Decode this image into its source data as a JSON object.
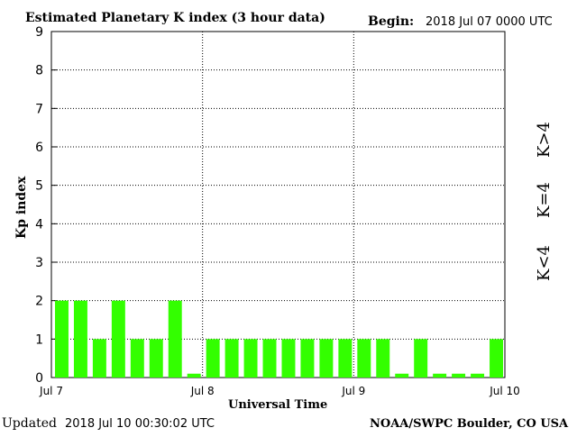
{
  "title": "Estimated Planetary K index (3 hour data)",
  "begin_label": "Begin:",
  "begin_value": "2018 Jul 07 0000 UTC",
  "updated_label": "Updated",
  "updated_value": "2018 Jul 10 00:30:02 UTC",
  "credit": "NOAA/SWPC Boulder, CO USA",
  "legend": {
    "high": {
      "label": "K>4",
      "color": "#ff3300"
    },
    "equal": {
      "label": "K=4",
      "color": "#ffcc00"
    },
    "low": {
      "label": "K<4",
      "color": "#33ff00"
    }
  },
  "chart_data": {
    "type": "bar",
    "title": "Estimated Planetary K index (3 hour data)",
    "xlabel": "Universal Time",
    "ylabel": "Kp index",
    "ylim": [
      0,
      9
    ],
    "yticks": [
      "0",
      "1",
      "2",
      "3",
      "4",
      "5",
      "6",
      "7",
      "8",
      "9"
    ],
    "xticks": [
      "Jul 7",
      "Jul 8",
      "Jul 9",
      "Jul 10"
    ],
    "grid": true,
    "bar_color": "#33ff00",
    "values": [
      2,
      2,
      1,
      2,
      1,
      1,
      2,
      0.1,
      1,
      1,
      1,
      1,
      1,
      1,
      1,
      1,
      1,
      1,
      0.1,
      1,
      0.1,
      0.1,
      0.1,
      1
    ]
  }
}
